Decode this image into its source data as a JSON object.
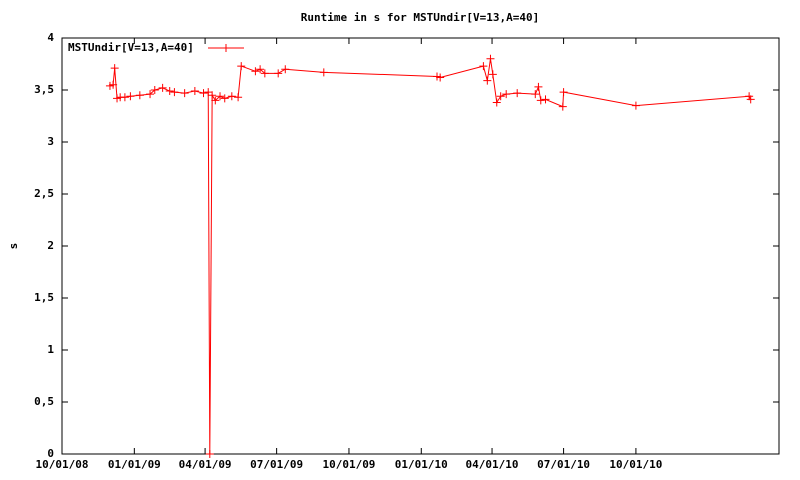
{
  "chart_data": {
    "type": "line",
    "title": "Runtime in s for MSTUndir[V=13,A=40]",
    "y_label": "s",
    "x": [
      "2008-12-01",
      "2008-12-05",
      "2008-12-07",
      "2008-12-10",
      "2008-12-14",
      "2008-12-20",
      "2008-12-27",
      "2009-01-08",
      "2009-01-21",
      "2009-01-27",
      "2009-02-06",
      "2009-02-15",
      "2009-02-21",
      "2009-03-06",
      "2009-03-19",
      "2009-03-30",
      "2009-04-05",
      "2009-04-07",
      "2009-04-10",
      "2009-04-14",
      "2009-04-20",
      "2009-04-26",
      "2009-05-05",
      "2009-05-13",
      "2009-05-17",
      "2009-06-04",
      "2009-06-10",
      "2009-06-16",
      "2009-07-03",
      "2009-07-12",
      "2009-08-30",
      "2010-01-21",
      "2010-01-25",
      "2010-03-21",
      "2010-03-26",
      "2010-03-30",
      "2010-04-02",
      "2010-04-07",
      "2010-04-12",
      "2010-04-19",
      "2010-05-03",
      "2010-05-26",
      "2010-05-30",
      "2010-06-02",
      "2010-06-08",
      "2010-06-30",
      "2010-07-01",
      "2010-10-01",
      "2011-02-22",
      "2011-02-24"
    ],
    "series": [
      {
        "name": "MSTUndir[V=13,A=40]",
        "color": "#ff0000",
        "values": [
          3.54,
          3.55,
          3.71,
          3.42,
          3.43,
          3.43,
          3.44,
          3.45,
          3.46,
          3.5,
          3.52,
          3.49,
          3.48,
          3.47,
          3.49,
          3.47,
          3.48,
          0,
          3.45,
          3.4,
          3.44,
          3.42,
          3.44,
          3.43,
          3.73,
          3.68,
          3.7,
          3.66,
          3.66,
          3.7,
          3.67,
          3.63,
          3.62,
          3.73,
          3.59,
          3.8,
          3.65,
          3.38,
          3.44,
          3.46,
          3.47,
          3.46,
          3.53,
          3.4,
          3.41,
          3.34,
          3.48,
          3.35,
          3.44,
          3.41
        ]
      }
    ],
    "xlim": [
      "2008-10-01",
      "2011-04-01"
    ],
    "xticks": [
      {
        "value": "2008-10-01",
        "label": "10/01/08"
      },
      {
        "value": "2009-01-01",
        "label": "01/01/09"
      },
      {
        "value": "2009-04-01",
        "label": "04/01/09"
      },
      {
        "value": "2009-07-01",
        "label": "07/01/09"
      },
      {
        "value": "2009-10-01",
        "label": "10/01/09"
      },
      {
        "value": "2010-01-01",
        "label": "01/01/10"
      },
      {
        "value": "2010-04-01",
        "label": "04/01/10"
      },
      {
        "value": "2010-07-01",
        "label": "07/01/10"
      },
      {
        "value": "2010-10-01",
        "label": "10/01/10"
      }
    ],
    "ylim": [
      0,
      4
    ],
    "yticks": [
      0,
      {
        "value": 0.5,
        "label": "0,5"
      },
      1,
      {
        "value": 1.5,
        "label": "1,5"
      },
      2,
      {
        "value": 2.5,
        "label": "2,5"
      },
      3,
      {
        "value": 3.5,
        "label": "3,5"
      },
      4
    ],
    "legend": "top-left"
  }
}
